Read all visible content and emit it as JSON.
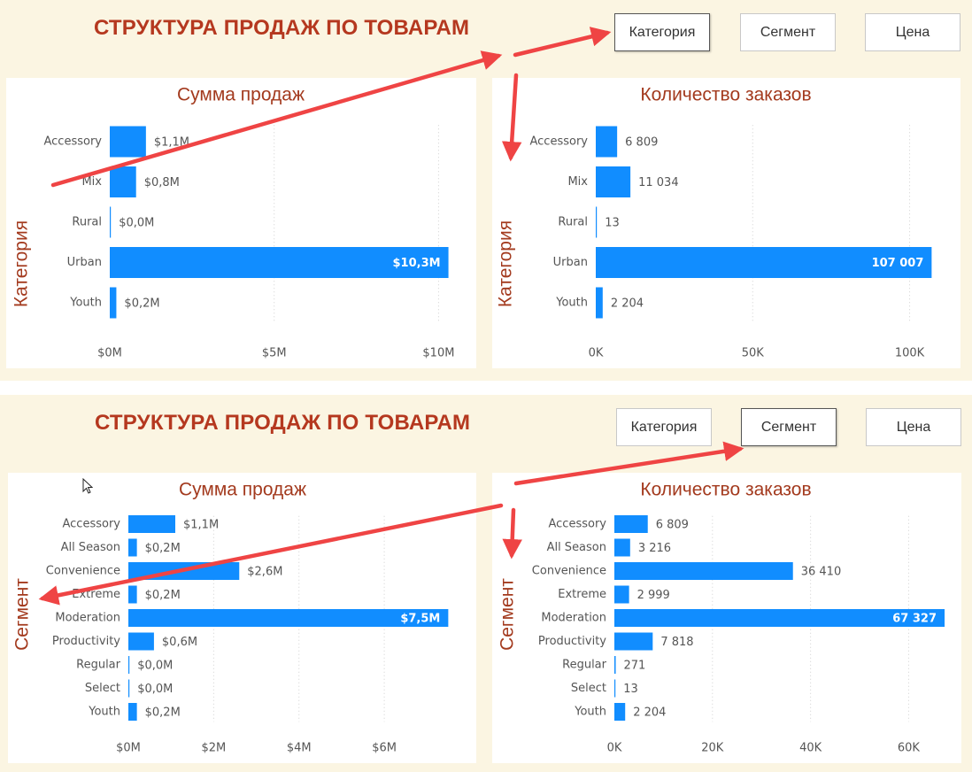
{
  "colors": {
    "bar": "#118dff",
    "title": "#b5381f",
    "arrow": "#ef4444"
  },
  "panels": [
    {
      "title": "СТРУКТУРА ПРОДАЖ ПО ТОВАРАМ",
      "buttons": [
        {
          "label": "Категория",
          "active": true
        },
        {
          "label": "Сегмент",
          "active": false
        },
        {
          "label": "Цена",
          "active": false
        }
      ]
    },
    {
      "title": "СТРУКТУРА ПРОДАЖ ПО ТОВАРАМ",
      "buttons": [
        {
          "label": "Категория",
          "active": false
        },
        {
          "label": "Сегмент",
          "active": true
        },
        {
          "label": "Цена",
          "active": false
        }
      ]
    }
  ],
  "chart_data": [
    {
      "type": "bar",
      "orientation": "horizontal",
      "title": "Сумма продаж",
      "ylabel": "Категория",
      "categories": [
        "Accessory",
        "Mix",
        "Rural",
        "Urban",
        "Youth"
      ],
      "values": [
        1.1,
        0.8,
        0.0,
        10.3,
        0.2
      ],
      "labels": [
        "$1,1M",
        "$0,8M",
        "$0,0M",
        "$10,3M",
        "$0,2M"
      ],
      "xlim": [
        0,
        10.5
      ],
      "xticks": [
        0,
        5,
        10
      ],
      "xtick_labels": [
        "$0M",
        "$5M",
        "$10M"
      ]
    },
    {
      "type": "bar",
      "orientation": "horizontal",
      "title": "Количество заказов",
      "ylabel": "Категория",
      "categories": [
        "Accessory",
        "Mix",
        "Rural",
        "Urban",
        "Youth"
      ],
      "values": [
        6809,
        11034,
        13,
        107007,
        2204
      ],
      "labels": [
        "6 809",
        "11 034",
        "13",
        "107 007",
        "2 204"
      ],
      "xlim": [
        0,
        110000
      ],
      "xticks": [
        0,
        50000,
        100000
      ],
      "xtick_labels": [
        "0K",
        "50K",
        "100K"
      ]
    },
    {
      "type": "bar",
      "orientation": "horizontal",
      "title": "Сумма продаж",
      "ylabel": "Сегмент",
      "categories": [
        "Accessory",
        "All Season",
        "Convenience",
        "Extreme",
        "Moderation",
        "Productivity",
        "Regular",
        "Select",
        "Youth"
      ],
      "values": [
        1.1,
        0.2,
        2.6,
        0.2,
        7.5,
        0.6,
        0.0,
        0.0,
        0.2
      ],
      "labels": [
        "$1,1M",
        "$0,2M",
        "$2,6M",
        "$0,2M",
        "$7,5M",
        "$0,6M",
        "$0,0M",
        "$0,0M",
        "$0,2M"
      ],
      "xlim": [
        0,
        7.7
      ],
      "xticks": [
        0,
        2,
        4,
        6
      ],
      "xtick_labels": [
        "$0M",
        "$2M",
        "$4M",
        "$6M"
      ]
    },
    {
      "type": "bar",
      "orientation": "horizontal",
      "title": "Количество заказов",
      "ylabel": "Сегмент",
      "categories": [
        "Accessory",
        "All Season",
        "Convenience",
        "Extreme",
        "Moderation",
        "Productivity",
        "Regular",
        "Select",
        "Youth"
      ],
      "values": [
        6809,
        3216,
        36410,
        2999,
        67327,
        7818,
        271,
        13,
        2204
      ],
      "labels": [
        "6 809",
        "3 216",
        "36 410",
        "2 999",
        "67 327",
        "7 818",
        "271",
        "13",
        "2 204"
      ],
      "xlim": [
        0,
        67500
      ],
      "xticks": [
        0,
        20000,
        40000,
        60000
      ],
      "xtick_labels": [
        "0K",
        "20K",
        "40K",
        "60K"
      ]
    }
  ]
}
